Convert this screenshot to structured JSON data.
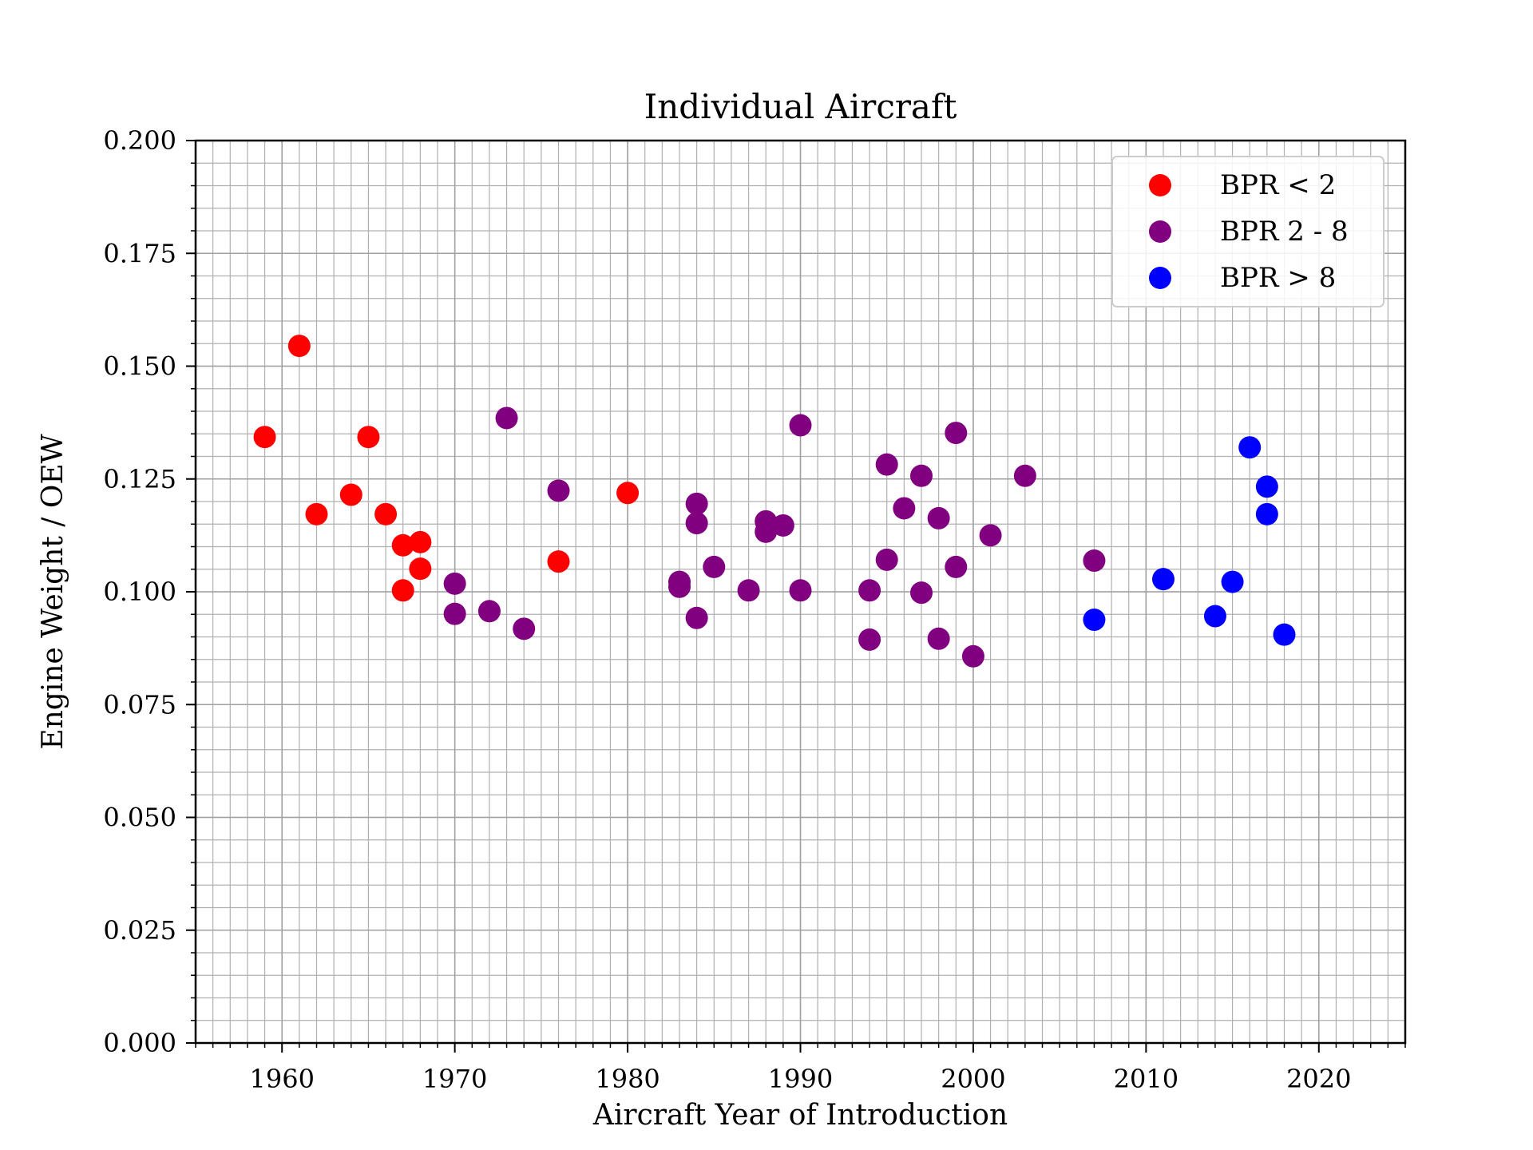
{
  "chart_data": {
    "type": "scatter",
    "title": "Individual Aircraft",
    "xlabel": "Aircraft Year of Introduction",
    "ylabel": "Engine Weight / OEW",
    "xlim": [
      1955,
      2025
    ],
    "ylim": [
      0.0,
      0.2
    ],
    "x_major_ticks": [
      1960,
      1970,
      1980,
      1990,
      2000,
      2010,
      2020
    ],
    "x_tick_labels": [
      "1960",
      "1970",
      "1980",
      "1990",
      "2000",
      "2010",
      "2020"
    ],
    "x_minor_step": 1,
    "y_major_ticks": [
      0.0,
      0.025,
      0.05,
      0.075,
      0.1,
      0.125,
      0.15,
      0.175,
      0.2
    ],
    "y_tick_labels": [
      "0.000",
      "0.025",
      "0.050",
      "0.075",
      "0.100",
      "0.125",
      "0.150",
      "0.175",
      "0.200"
    ],
    "y_minor_step": 0.005,
    "grid": "major and minor",
    "legend_position": "top-right",
    "series": [
      {
        "name": "BPR < 2",
        "color": "#ff0000",
        "points": [
          [
            1959,
            0.1343
          ],
          [
            1961,
            0.1545
          ],
          [
            1962,
            0.1172
          ],
          [
            1964,
            0.1215
          ],
          [
            1965,
            0.1343
          ],
          [
            1966,
            0.1172
          ],
          [
            1967,
            0.1103
          ],
          [
            1967,
            0.1003
          ],
          [
            1968,
            0.111
          ],
          [
            1968,
            0.1051
          ],
          [
            1976,
            0.1067
          ],
          [
            1980,
            0.1219
          ]
        ]
      },
      {
        "name": "BPR 2 - 8",
        "color": "#800080",
        "points": [
          [
            1970,
            0.1018
          ],
          [
            1970,
            0.0951
          ],
          [
            1972,
            0.0957
          ],
          [
            1973,
            0.1385
          ],
          [
            1974,
            0.0918
          ],
          [
            1976,
            0.1224
          ],
          [
            1983,
            0.1022
          ],
          [
            1983,
            0.1011
          ],
          [
            1984,
            0.1195
          ],
          [
            1984,
            0.1152
          ],
          [
            1984,
            0.0942
          ],
          [
            1985,
            0.1055
          ],
          [
            1987,
            0.1003
          ],
          [
            1988,
            0.1156
          ],
          [
            1988,
            0.1133
          ],
          [
            1989,
            0.1147
          ],
          [
            1990,
            0.1369
          ],
          [
            1990,
            0.1003
          ],
          [
            1994,
            0.1003
          ],
          [
            1994,
            0.0894
          ],
          [
            1995,
            0.1282
          ],
          [
            1995,
            0.1071
          ],
          [
            1996,
            0.1185
          ],
          [
            1997,
            0.1257
          ],
          [
            1997,
            0.0998
          ],
          [
            1998,
            0.1163
          ],
          [
            1998,
            0.0896
          ],
          [
            1999,
            0.1352
          ],
          [
            1999,
            0.1055
          ],
          [
            2000,
            0.0857
          ],
          [
            2001,
            0.1125
          ],
          [
            2003,
            0.1257
          ],
          [
            2007,
            0.1069
          ]
        ]
      },
      {
        "name": "BPR > 8",
        "color": "#0000ff",
        "points": [
          [
            2007,
            0.0938
          ],
          [
            2011,
            0.1028
          ],
          [
            2014,
            0.0946
          ],
          [
            2015,
            0.1022
          ],
          [
            2016,
            0.132
          ],
          [
            2017,
            0.1233
          ],
          [
            2017,
            0.1172
          ],
          [
            2018,
            0.0905
          ]
        ]
      }
    ]
  }
}
